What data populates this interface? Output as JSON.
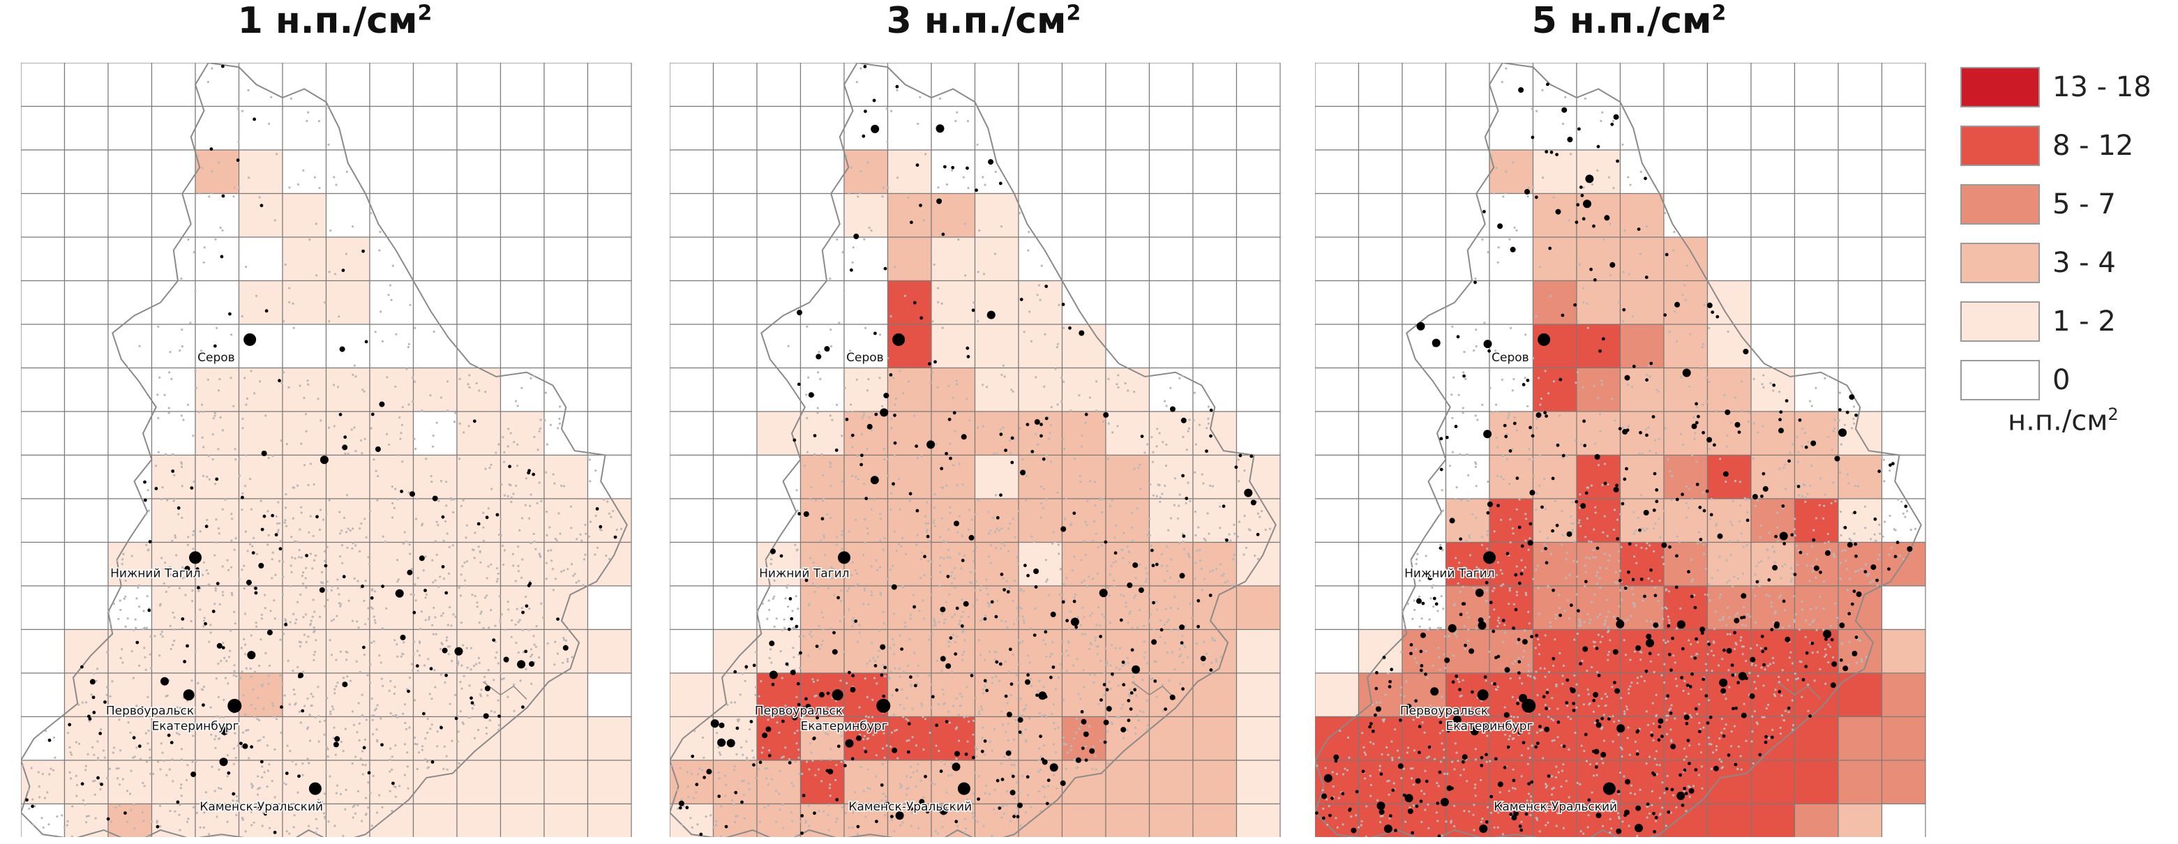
{
  "maps": [
    {
      "title": "1 н.п./см",
      "title_sup": "2",
      "grid": [
        "00000000000000",
        "00000000000000",
        "00002100000000",
        "00000110000000",
        "00000011000000",
        "00000111000000",
        "00000000000000",
        "00001111111000",
        "00001111101100",
        "00011111111110",
        "00011111111111",
        "00111111111111",
        "00011111111110",
        "01111111111111",
        "01111211111110",
        "01111111111111",
        "11111111111111",
        "01211111111111"
      ]
    },
    {
      "title": "3 н.п./см",
      "title_sup": "2",
      "grid": [
        "00000000000000",
        "00000000000000",
        "00002100000000",
        "00001221000000",
        "00000211000000",
        "00000411100000",
        "00000411110000",
        "00001221111000",
        "00112222221110",
        "00022221222111",
        "00022222222111",
        "00122222122221",
        "00022222222222",
        "01122222222221",
        "11444222222221",
        "11424442232221",
        "22242222222221",
        "12222222222221"
      ]
    },
    {
      "title": "5 н.п./см",
      "title_sup": "2",
      "grid": [
        "00000000000000",
        "00000000000000",
        "00002110000000",
        "00000222000000",
        "00000222200000",
        "00000322210000",
        "00000443210000",
        "00000432221000",
        "00002222222210",
        "00002242342220",
        "00024242223410",
        "00044334322333",
        "00034333433330",
        "01333444444432",
        "13344444444443",
        "44444444444433",
        "44444444444433",
        "44444444444320"
      ]
    }
  ],
  "colors": {
    "class_fills": [
      "#ffffff",
      "#fde6da",
      "#f4bfa8",
      "#e88e78",
      "#e55246",
      "#cc1a27"
    ],
    "grid_line": "#7a7a7a",
    "boundary": "#8a8a8a",
    "small_dot": "#b8b8b8",
    "settlement": "#000000"
  },
  "city_labels": {
    "serov": "Серов",
    "nizhny_tagil": "Нижний Тагил",
    "pervouralsk": "Первоуральск",
    "ekaterinburg": "Екатеринбург",
    "kamensk": "Каменск-Уральский"
  },
  "legend": {
    "items": [
      {
        "label": "13 - 18",
        "color": "#cc1a27"
      },
      {
        "label": "8 - 12",
        "color": "#e55246"
      },
      {
        "label": "5 - 7",
        "color": "#e88e78"
      },
      {
        "label": "3 - 4",
        "color": "#f4bfa8"
      },
      {
        "label": "1 - 2",
        "color": "#fde6da"
      },
      {
        "label": "0",
        "color": "#ffffff"
      }
    ],
    "unit": "н.п./см",
    "unit_sup": "2"
  }
}
